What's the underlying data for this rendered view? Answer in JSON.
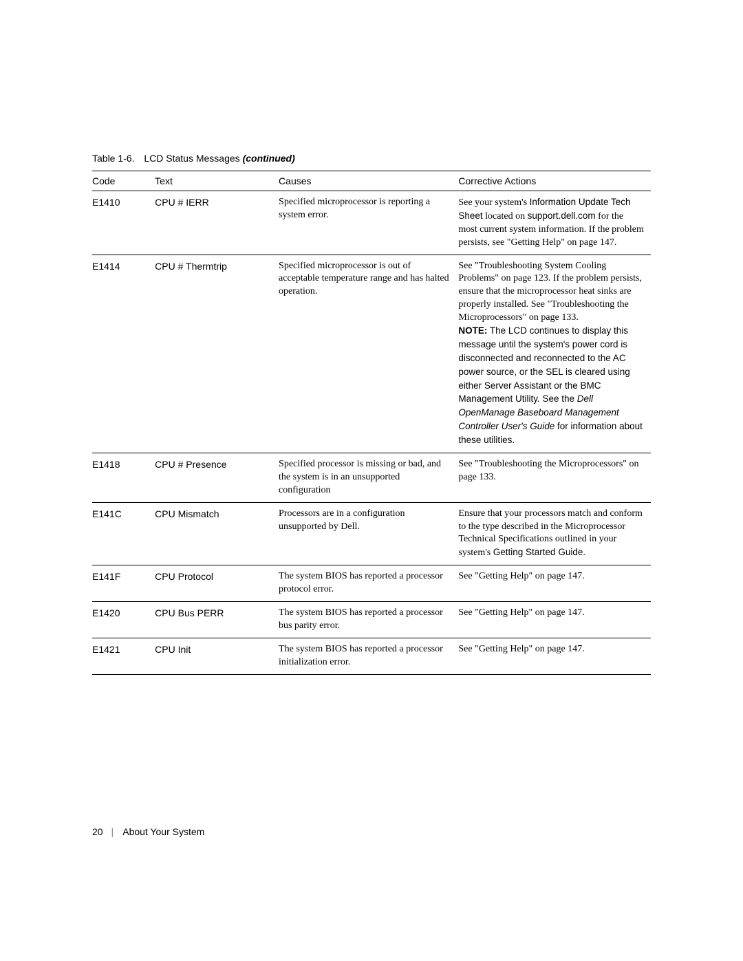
{
  "caption": {
    "tableNum": "Table 1-6.",
    "title": "LCD Status Messages",
    "continued": "(continued)"
  },
  "headers": {
    "code": "Code",
    "text": "Text",
    "causes": "Causes",
    "actions": "Corrective Actions"
  },
  "rows": [
    {
      "code": "E1410",
      "text": "CPU # IERR",
      "causes": "Specified microprocessor is reporting a system error.",
      "actions_html": "See your system's <span class='sans'>Information Update Tech Sheet</span> located on <span class='sans'>support.dell.com</span> for the most current system information. If the problem persists, see \"Getting Help\" on page 147."
    },
    {
      "code": "E1414",
      "text": "CPU # Thermtrip",
      "causes": "Specified microprocessor is out of acceptable temperature range and has halted operation.",
      "actions_html": "See \"Troubleshooting System Cooling Problems\" on page 123. If the problem persists, ensure that the microprocessor heat sinks are properly installed. See \"Troubleshooting the Microprocessors\" on page 133.<br><span class='sans'><b>NOTE:</b> The LCD continues to display this message until the system's power cord is disconnected and reconnected to the AC power source, or the SEL is cleared using either Server Assistant or the BMC Management Utility. See the <i>Dell OpenManage Baseboard Management Controller User's Guide</i> for information about these utilities.</span>"
    },
    {
      "code": "E1418",
      "text": "CPU # Presence",
      "causes": "Specified processor is missing or bad, and the system is in an unsupported configuration",
      "actions_html": "See \"Troubleshooting the Microprocessors\" on page 133."
    },
    {
      "code": "E141C",
      "text": "CPU Mismatch",
      "causes": "Processors are in a configuration unsupported by Dell.",
      "actions_html": "Ensure that your processors match and conform to the type described in the Microprocessor Technical Specifications outlined in your system's <span class='sans'>Getting Started Guide</span>."
    },
    {
      "code": "E141F",
      "text": "CPU Protocol",
      "causes": "The system BIOS has reported a processor protocol error.",
      "actions_html": "See \"Getting Help\" on page 147."
    },
    {
      "code": "E1420",
      "text": "CPU Bus PERR",
      "causes": "The system BIOS has reported a processor bus parity error.",
      "actions_html": "See \"Getting Help\" on page 147."
    },
    {
      "code": "E1421",
      "text": "CPU Init",
      "causes": "The system BIOS has reported a processor initialization error.",
      "actions_html": "See \"Getting Help\" on page 147."
    }
  ],
  "footer": {
    "pageNum": "20",
    "section": "About Your System"
  }
}
